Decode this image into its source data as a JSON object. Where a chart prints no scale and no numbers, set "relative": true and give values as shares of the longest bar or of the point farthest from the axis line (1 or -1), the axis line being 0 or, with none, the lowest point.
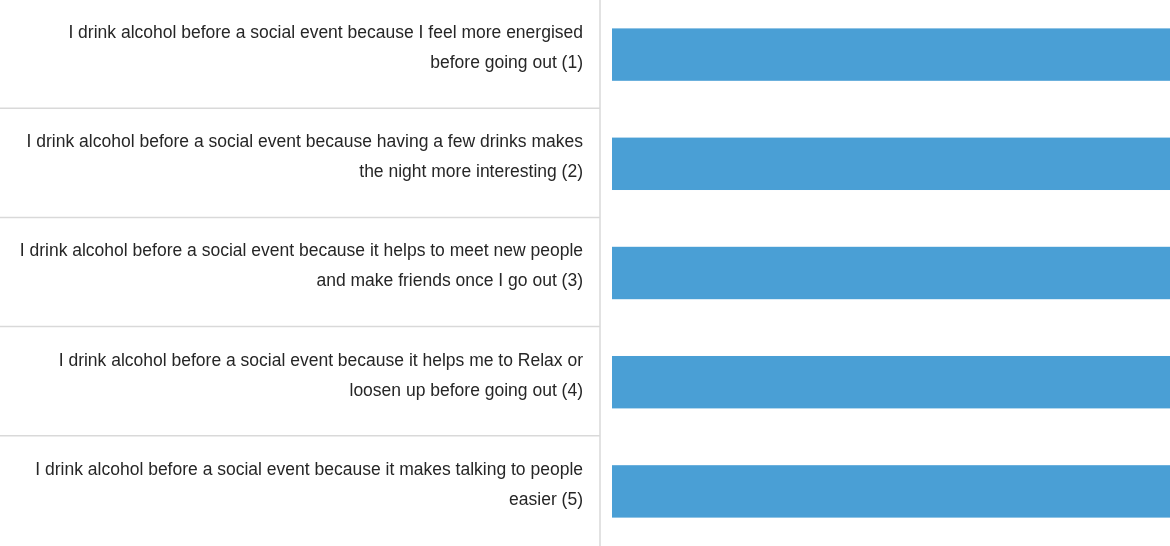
{
  "chart_data": {
    "type": "bar",
    "orientation": "horizontal",
    "relative": true,
    "color": "#4a9fd5",
    "categories": [
      "I drink alcohol before a social event because I feel more energised before going out (1)",
      "I drink alcohol before a social event because having a few drinks makes the night more interesting (2)",
      "I drink alcohol before a social event because it helps to meet new people and make friends once I go out (3)",
      "I drink alcohol before a social event because it helps me to Relax or loosen up before going out (4)",
      "I drink alcohol before a social event because it makes talking to people easier (5)"
    ],
    "values": [
      1,
      1,
      1,
      1,
      1
    ]
  }
}
